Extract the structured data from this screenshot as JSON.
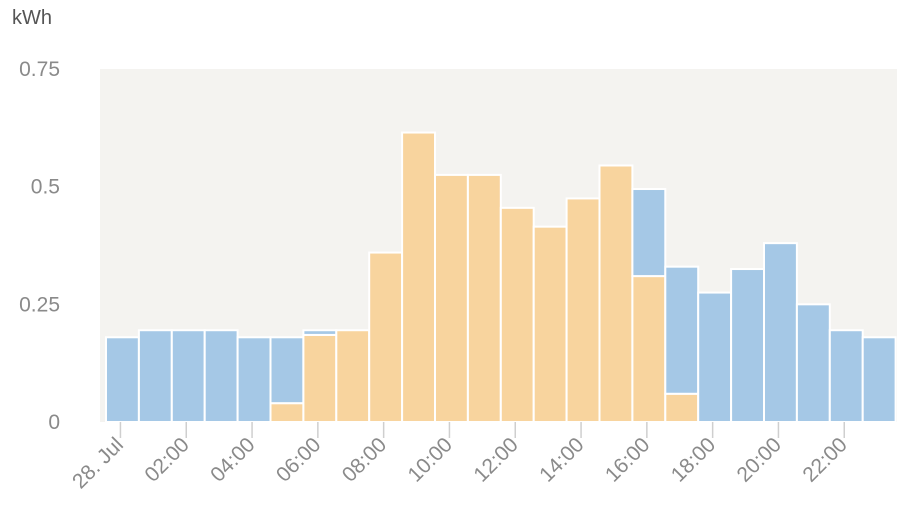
{
  "chart_data": {
    "type": "bar",
    "unit_label": "kWh",
    "ylim": [
      0,
      0.75
    ],
    "y_ticks": [
      {
        "value": 0,
        "label": "0"
      },
      {
        "value": 0.25,
        "label": "0.25"
      },
      {
        "value": 0.5,
        "label": "0.5"
      },
      {
        "value": 0.75,
        "label": "0.75"
      }
    ],
    "x_ticks": [
      {
        "hour": 0,
        "label": "28. Jul"
      },
      {
        "hour": 2,
        "label": "02:00"
      },
      {
        "hour": 4,
        "label": "04:00"
      },
      {
        "hour": 6,
        "label": "06:00"
      },
      {
        "hour": 8,
        "label": "08:00"
      },
      {
        "hour": 10,
        "label": "10:00"
      },
      {
        "hour": 12,
        "label": "12:00"
      },
      {
        "hour": 14,
        "label": "14:00"
      },
      {
        "hour": 16,
        "label": "16:00"
      },
      {
        "hour": 18,
        "label": "18:00"
      },
      {
        "hour": 20,
        "label": "20:00"
      },
      {
        "hour": 22,
        "label": "22:00"
      }
    ],
    "hours": [
      0,
      1,
      2,
      3,
      4,
      5,
      6,
      7,
      8,
      9,
      10,
      11,
      12,
      13,
      14,
      15,
      16,
      17,
      18,
      19,
      20,
      21,
      22,
      23
    ],
    "stacked": true,
    "grid": false,
    "series": [
      {
        "color": "#f8d49e",
        "values": [
          0,
          0,
          0,
          0,
          0,
          0.04,
          0.185,
          0.195,
          0.36,
          0.615,
          0.525,
          0.525,
          0.455,
          0.415,
          0.475,
          0.545,
          0.31,
          0.06,
          0,
          0,
          0,
          0,
          0,
          0
        ]
      },
      {
        "color": "#a5c8e6",
        "values": [
          0.18,
          0.195,
          0.195,
          0.195,
          0.18,
          0.14,
          0.01,
          0,
          0,
          0,
          0,
          0,
          0,
          0,
          0,
          0,
          0.185,
          0.27,
          0.275,
          0.325,
          0.38,
          0.25,
          0.195,
          0.18
        ]
      }
    ],
    "plot_background": "#f4f3f0",
    "bar_divider_color": "#ffffff"
  }
}
